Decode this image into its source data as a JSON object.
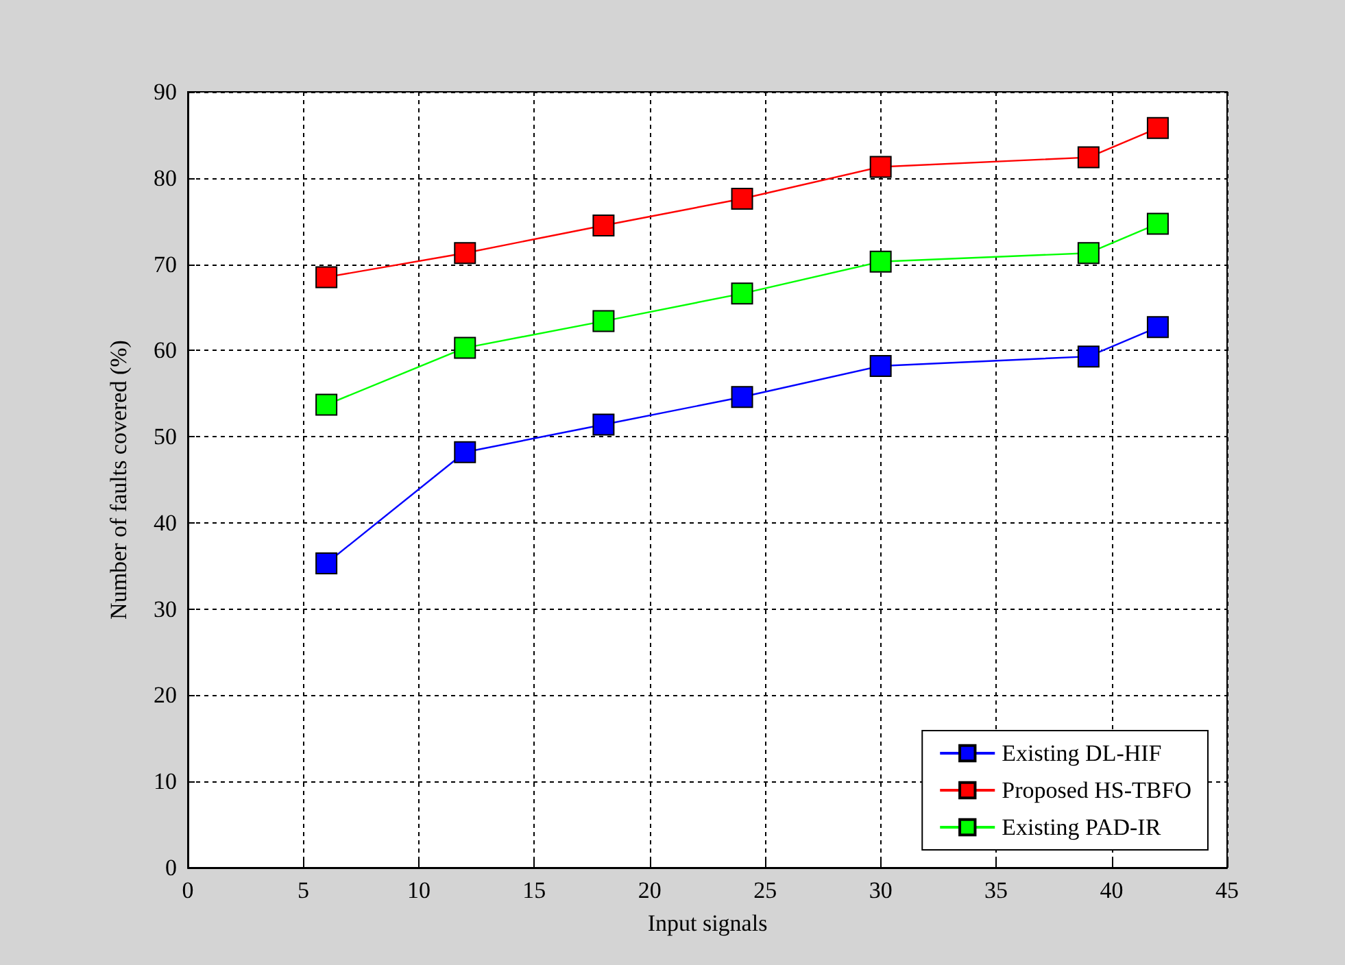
{
  "chart_data": {
    "type": "line",
    "xlabel": "Input signals",
    "ylabel": "Number of faults covered (%)",
    "x": [
      6,
      12,
      18,
      24,
      30,
      39,
      42
    ],
    "series": [
      {
        "name": "Existing DL-HIF",
        "color": "#0000ff",
        "values": [
          35.3,
          48.2,
          51.4,
          54.6,
          58.2,
          59.3,
          62.7
        ]
      },
      {
        "name": "Proposed HS-TBFO",
        "color": "#ff0000",
        "values": [
          68.5,
          71.3,
          74.5,
          77.6,
          81.3,
          82.4,
          85.8
        ]
      },
      {
        "name": "Existing PAD-IR",
        "color": "#00ff00",
        "values": [
          53.7,
          60.3,
          63.4,
          66.6,
          70.3,
          71.3,
          74.7
        ]
      }
    ],
    "xlim": [
      0,
      45
    ],
    "xticks": [
      0,
      5,
      10,
      15,
      20,
      25,
      30,
      35,
      40,
      45
    ],
    "ylim": [
      0,
      90
    ],
    "yticks": [
      0,
      10,
      20,
      30,
      40,
      50,
      60,
      70,
      80,
      90
    ],
    "grid": true,
    "legend": "bottom right",
    "marker": "square",
    "line_style": "solid"
  }
}
